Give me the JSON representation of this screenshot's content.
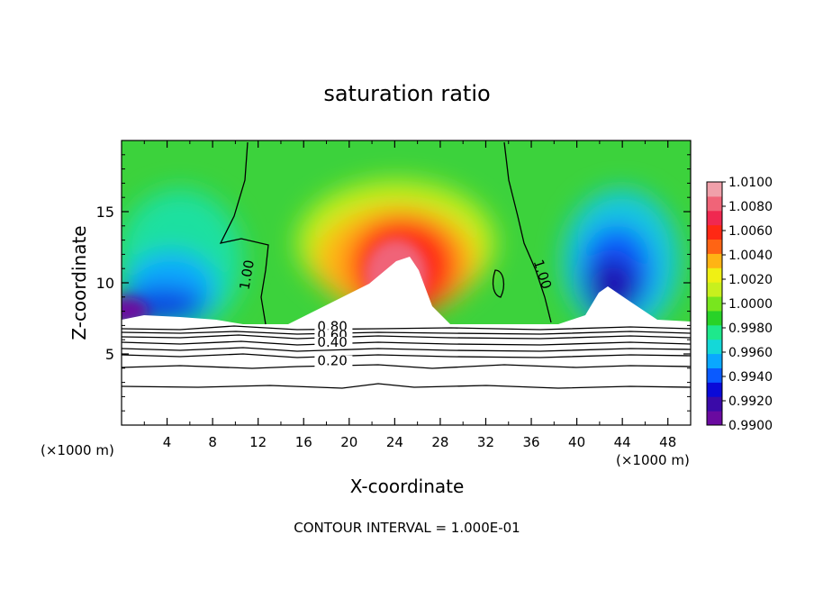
{
  "chart_data": {
    "type": "heatmap",
    "title": "saturation ratio",
    "xlabel": "X-coordinate",
    "ylabel": "Z-coordinate",
    "x_unit_left": "(×1000 m)",
    "x_unit_right": "(×1000 m)",
    "xlim": [
      0,
      50
    ],
    "ylim": [
      0,
      20
    ],
    "x_ticks": [
      4,
      8,
      12,
      16,
      20,
      24,
      28,
      32,
      36,
      40,
      44,
      48
    ],
    "y_ticks": [
      5,
      10,
      15
    ],
    "footer": "CONTOUR INTERVAL = 1.000E-01",
    "colorbar": {
      "min": 0.99,
      "max": 1.01,
      "labels": [
        "1.0100",
        "1.0080",
        "1.0060",
        "1.0040",
        "1.0020",
        "1.0000",
        "0.9980",
        "0.9960",
        "0.9940",
        "0.9920",
        "0.9900"
      ],
      "colors": [
        "#6a0aa0",
        "#3a0aa8",
        "#0a0ad8",
        "#0a5aff",
        "#0aa8ff",
        "#14d8d8",
        "#1ee88c",
        "#28d228",
        "#78e61e",
        "#c8f01e",
        "#f0f014",
        "#ffb414",
        "#ff6414",
        "#ff2814",
        "#f02850",
        "#f06478",
        "#f0a0aa"
      ]
    },
    "contour_labels": [
      {
        "text": "1.00",
        "x": 11.4,
        "z": 10.5
      },
      {
        "text": "1.00",
        "x": 36.6,
        "z": 10.5
      },
      {
        "text": "0.80",
        "x": 17.2,
        "z": 6.6
      },
      {
        "text": "0.60",
        "x": 17.2,
        "z": 6.0
      },
      {
        "text": "0.40",
        "x": 17.2,
        "z": 5.5
      },
      {
        "text": "0.20",
        "x": 17.2,
        "z": 4.2
      }
    ]
  }
}
